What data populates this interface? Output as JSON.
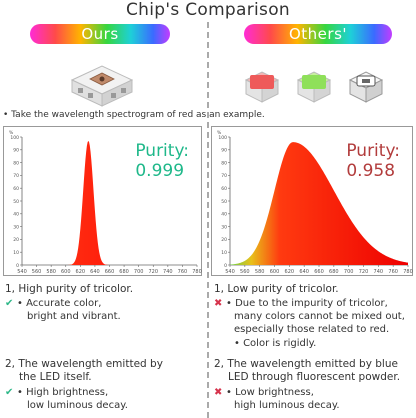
{
  "title": "Chip's Comparison",
  "left": {
    "label": "Ours",
    "purity_label": "Purity:",
    "purity_value": "0.999",
    "point1_title": "1, High purity of tricolor.",
    "point1_items": [
      "• Accurate color,",
      "bright and vibrant."
    ],
    "point2_title_line1": "2, The wavelength emitted by",
    "point2_title_line2": "the LED itself.",
    "point2_items": [
      "• High brightness,",
      "low luminous decay."
    ]
  },
  "right": {
    "label": "Others'",
    "purity_label": "Purity:",
    "purity_value": "0.958",
    "point1_title": "1, Low purity of tricolor.",
    "point1_items": [
      "• Due to the impurity of tricolor,",
      "many colors cannot be mixed out,",
      "especially those related to red.",
      "• Color is rigidly."
    ],
    "point2_title_line1": "2, The wavelength emitted by blue",
    "point2_title_line2": "LED through fluorescent powder.",
    "point2_items": [
      "• Low brightness,",
      "high luminous decay."
    ]
  },
  "note": "• Take the wavelength spectrogram of red as an example.",
  "colors": {
    "ours": "#1fb88a",
    "others": "#b23c3c",
    "check": "#2fb889",
    "cross": "#d6334c"
  },
  "chart_data": [
    {
      "type": "area",
      "title": "",
      "x_ticks": [
        "540",
        "560",
        "580",
        "600",
        "620",
        "640",
        "660",
        "680",
        "700",
        "720",
        "740",
        "760",
        "780"
      ],
      "y_ticks": [
        "100",
        "90",
        "80",
        "70",
        "60",
        "50",
        "40",
        "30",
        "20",
        "10",
        "0"
      ],
      "y_unit": "%",
      "xlim": [
        540,
        780
      ],
      "ylim": [
        0,
        100
      ],
      "series": [
        {
          "peak_x": 631,
          "peak_y": 97,
          "width": 7
        }
      ]
    },
    {
      "type": "area",
      "title": "",
      "x_ticks": [
        "540",
        "560",
        "580",
        "600",
        "620",
        "640",
        "660",
        "680",
        "700",
        "720",
        "740",
        "760",
        "780"
      ],
      "y_ticks": [
        "100",
        "90",
        "80",
        "70",
        "60",
        "50",
        "40",
        "30",
        "20",
        "10",
        "0"
      ],
      "y_unit": "%",
      "xlim": [
        540,
        780
      ],
      "ylim": [
        0,
        100
      ],
      "series": [
        {
          "peak_x": 625,
          "peak_y": 96,
          "width_left": 25,
          "width_right": 55
        }
      ]
    }
  ]
}
